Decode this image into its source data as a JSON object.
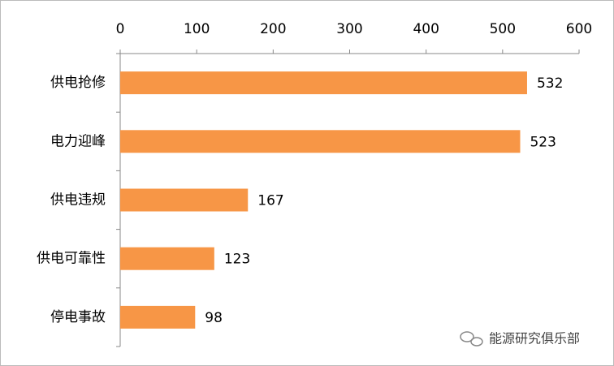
{
  "chart_data": {
    "type": "barh",
    "categories": [
      "供电抢修",
      "电力迎峰",
      "供电违规",
      "供电可靠性",
      "停电事故"
    ],
    "values": [
      532,
      523,
      167,
      123,
      98
    ],
    "color": "#f79646",
    "xlim": [
      0,
      600
    ],
    "xticks": [
      0,
      100,
      200,
      300,
      400,
      500,
      600
    ],
    "grid": false,
    "watermark": "能源研究俱乐部"
  }
}
